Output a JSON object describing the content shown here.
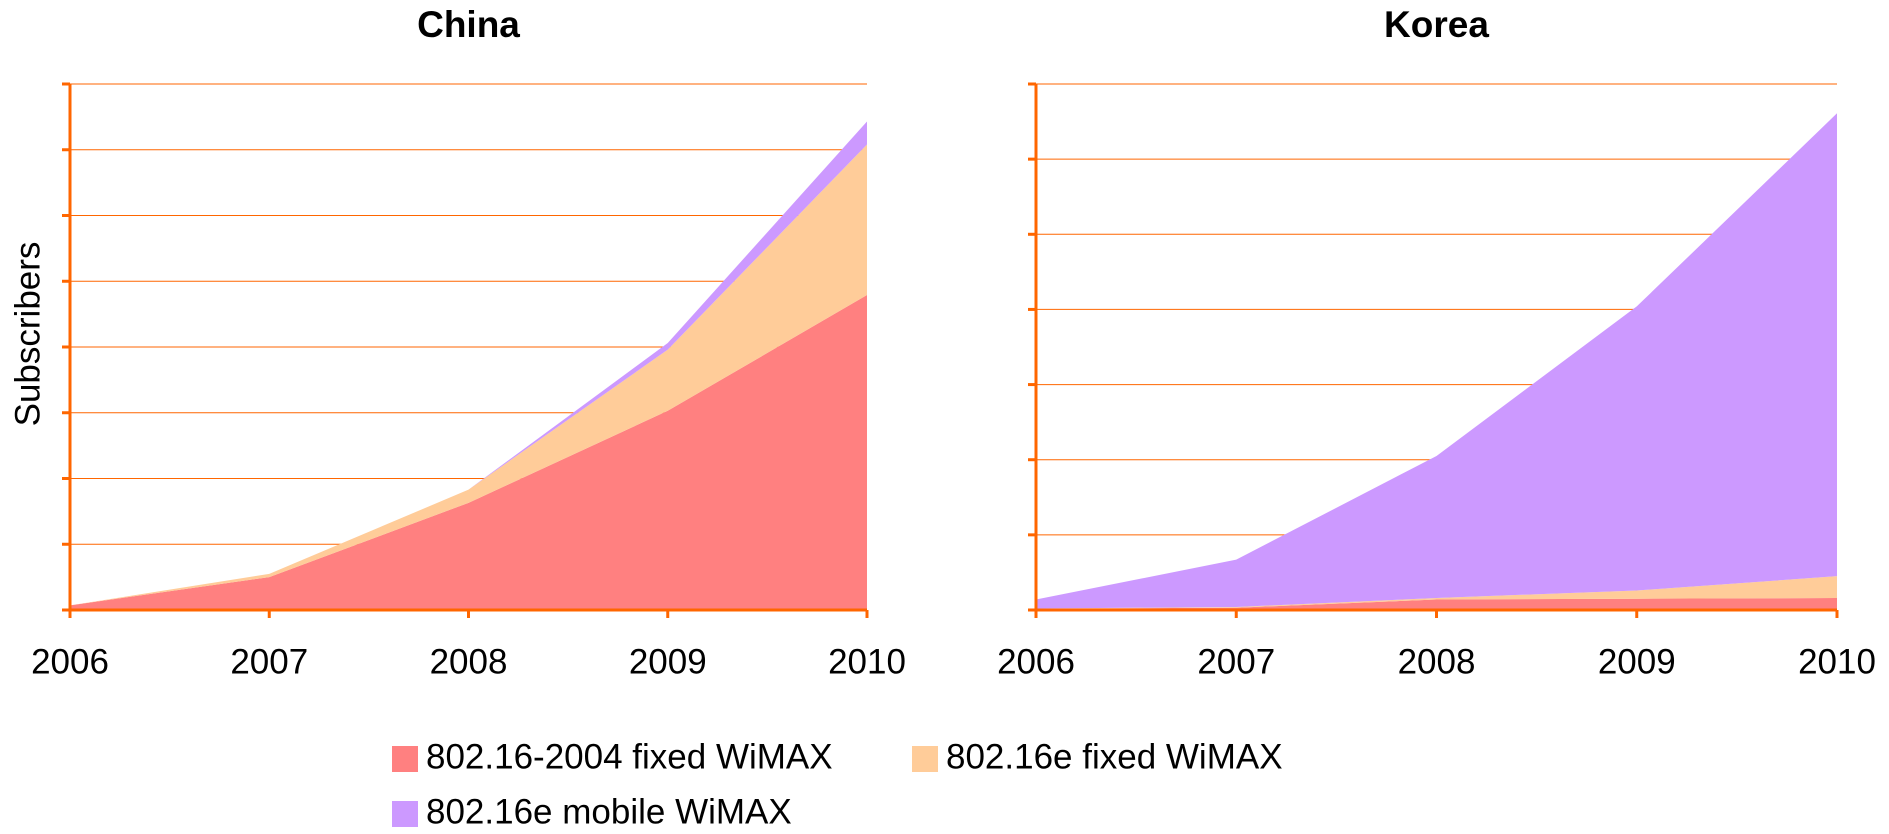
{
  "chart_data": [
    {
      "type": "stacked_area",
      "title": "China",
      "y_label": "Subscribers",
      "categories": [
        "2006",
        "2007",
        "2008",
        "2009",
        "2010"
      ],
      "series": [
        {
          "name": "802.16-2004 fixed WiMAX",
          "color": "#ff8080",
          "values": [
            0.07,
            0.5,
            1.63,
            3.03,
            4.79
          ]
        },
        {
          "name": "802.16e fixed WiMAX",
          "color": "#ffcc99",
          "values": [
            0,
            0.05,
            0.2,
            0.93,
            2.29
          ]
        },
        {
          "name": "802.16e mobile WiMAX",
          "color": "#cc99ff",
          "values": [
            0,
            0,
            0,
            0.1,
            0.35
          ]
        }
      ],
      "ylim": [
        0,
        8
      ],
      "yticks": [
        0,
        1,
        2,
        3,
        4,
        5,
        6,
        7,
        8
      ],
      "grid": true
    },
    {
      "type": "stacked_area",
      "title": "Korea",
      "categories": [
        "2006",
        "2007",
        "2008",
        "2009",
        "2010"
      ],
      "series": [
        {
          "color": "#ff8080",
          "values": [
            0.02,
            0.03,
            0.14,
            0.15,
            0.16
          ]
        },
        {
          "color": "#ffcc99",
          "values": [
            0,
            0.01,
            0.02,
            0.11,
            0.29
          ]
        },
        {
          "color": "#cc99ff",
          "values": [
            0.12,
            0.63,
            1.89,
            3.78,
            6.16
          ]
        }
      ],
      "ylim": [
        0,
        7
      ],
      "yticks": [
        0,
        1,
        2,
        3,
        4,
        5,
        6,
        7
      ],
      "grid": true
    }
  ]
}
